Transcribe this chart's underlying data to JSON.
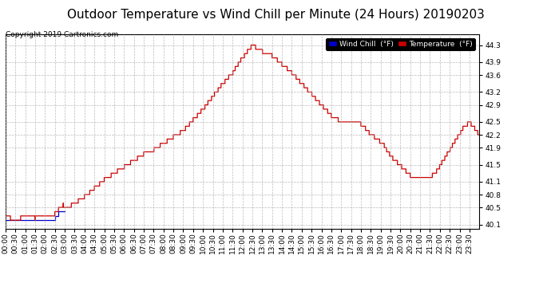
{
  "title": "Outdoor Temperature vs Wind Chill per Minute (24 Hours) 20190203",
  "copyright": "Copyright 2019 Cartronics.com",
  "ylim": [
    40.0,
    44.55
  ],
  "yticks": [
    40.1,
    40.5,
    40.8,
    41.1,
    41.5,
    41.9,
    42.2,
    42.5,
    42.9,
    43.2,
    43.6,
    43.9,
    44.3
  ],
  "background_color": "#ffffff",
  "grid_color": "#aaaaaa",
  "temp_color": "#cc0000",
  "wind_color": "#0000cc",
  "title_fontsize": 11,
  "tick_fontsize": 6.5,
  "ctrl_x": [
    0,
    30,
    60,
    90,
    120,
    150,
    155,
    165,
    175,
    190,
    210,
    240,
    270,
    300,
    330,
    360,
    390,
    420,
    450,
    480,
    510,
    540,
    570,
    600,
    630,
    660,
    690,
    710,
    730,
    750,
    760,
    780,
    810,
    840,
    870,
    900,
    930,
    960,
    990,
    1020,
    1050,
    1060,
    1080,
    1100,
    1110,
    1130,
    1150,
    1170,
    1190,
    1210,
    1230,
    1250,
    1270,
    1290,
    1310,
    1330,
    1350,
    1370,
    1390,
    1410,
    1440
  ],
  "ctrl_y": [
    40.3,
    40.2,
    40.3,
    40.25,
    40.3,
    40.35,
    40.4,
    40.5,
    40.55,
    40.5,
    40.6,
    40.75,
    40.95,
    41.15,
    41.3,
    41.45,
    41.6,
    41.75,
    41.85,
    42.0,
    42.15,
    42.3,
    42.55,
    42.8,
    43.1,
    43.4,
    43.65,
    43.9,
    44.1,
    44.3,
    44.25,
    44.15,
    44.05,
    43.85,
    43.65,
    43.4,
    43.15,
    42.9,
    42.65,
    42.5,
    42.5,
    42.5,
    42.45,
    42.3,
    42.2,
    42.1,
    41.95,
    41.7,
    41.55,
    41.4,
    41.25,
    41.15,
    41.15,
    41.2,
    41.35,
    41.6,
    41.85,
    42.1,
    42.35,
    42.5,
    42.2
  ],
  "wind_ctrl_x": [
    0,
    30,
    60,
    90,
    120,
    140,
    155,
    165,
    175
  ],
  "wind_ctrl_y": [
    40.2,
    40.15,
    40.2,
    40.15,
    40.2,
    40.15,
    40.3,
    40.4,
    40.45
  ]
}
